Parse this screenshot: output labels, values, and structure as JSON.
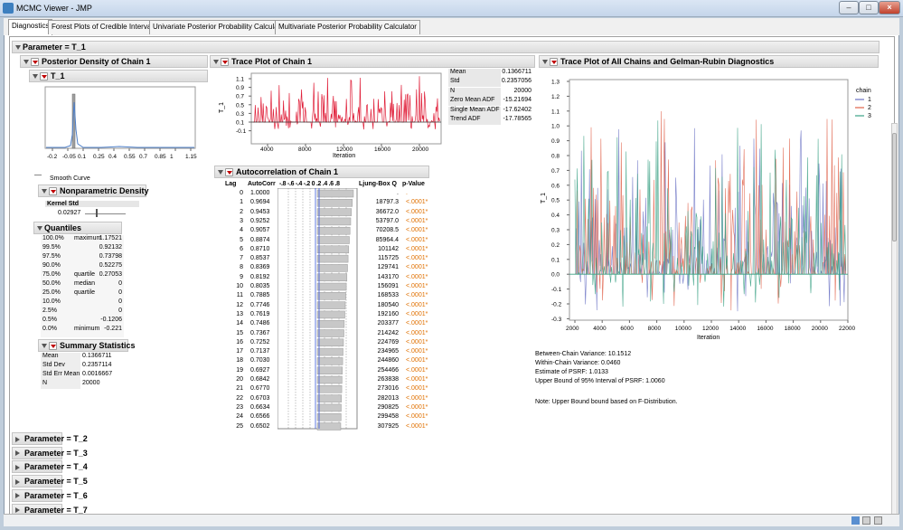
{
  "window": {
    "title": "MCMC Viewer - JMP"
  },
  "tabs": [
    {
      "label": "Diagnostics",
      "active": true
    },
    {
      "label": "Forest Plots of Credible Intervals",
      "active": false
    },
    {
      "label": "Univariate Posterior Probability Calculator",
      "active": false
    },
    {
      "label": "Multivariate Posterior Probability Calculator",
      "active": false
    }
  ],
  "parameter_header": "Parameter = T_1",
  "density": {
    "title": "Posterior Density of Chain 1",
    "subtitle": "T_1",
    "x_ticks": [
      "-0.2",
      "-0.05",
      "0.1",
      "0.25",
      "0.4",
      "0.55",
      "0.7",
      "0.85",
      "1",
      "1.15"
    ],
    "smooth_curve_label": "Smooth Curve",
    "nonparametric": {
      "title": "Nonparametric Density",
      "col": "Kernel Std",
      "value": "0.02927"
    }
  },
  "quantiles": {
    "title": "Quantiles",
    "rows": [
      {
        "pct": "100.0%",
        "label": "maximum",
        "value": "1.17521"
      },
      {
        "pct": "99.5%",
        "label": "",
        "value": "0.92132"
      },
      {
        "pct": "97.5%",
        "label": "",
        "value": "0.73798"
      },
      {
        "pct": "90.0%",
        "label": "",
        "value": "0.52275"
      },
      {
        "pct": "75.0%",
        "label": "quartile",
        "value": "0.27053"
      },
      {
        "pct": "50.0%",
        "label": "median",
        "value": "0"
      },
      {
        "pct": "25.0%",
        "label": "quartile",
        "value": "0"
      },
      {
        "pct": "10.0%",
        "label": "",
        "value": "0"
      },
      {
        "pct": "2.5%",
        "label": "",
        "value": "0"
      },
      {
        "pct": "0.5%",
        "label": "",
        "value": "-0.1206"
      },
      {
        "pct": "0.0%",
        "label": "minimum",
        "value": "-0.221"
      }
    ]
  },
  "summary": {
    "title": "Summary Statistics",
    "rows": [
      {
        "label": "Mean",
        "value": "0.1366711"
      },
      {
        "label": "Std Dev",
        "value": "0.2357114"
      },
      {
        "label": "Std Err Mean",
        "value": "0.0016667"
      },
      {
        "label": "N",
        "value": "20000"
      }
    ]
  },
  "trace1": {
    "title": "Trace Plot of Chain 1",
    "ylabel": "T_1",
    "xlabel": "Iteration",
    "y_ticks": [
      "1.1",
      "0.9",
      "0.7",
      "0.5",
      "0.3",
      "0.1",
      "-0.1"
    ],
    "x_ticks": [
      "4000",
      "8000",
      "12000",
      "16000",
      "20000"
    ],
    "stats": [
      {
        "label": "Mean",
        "value": "0.1366711"
      },
      {
        "label": "Std",
        "value": "0.2357056"
      },
      {
        "label": "N",
        "value": "20000"
      },
      {
        "label": "Zero Mean ADF",
        "value": "-15.21694"
      },
      {
        "label": "Single Mean ADF",
        "value": "-17.62402"
      },
      {
        "label": "Trend ADF",
        "value": "-17.78565"
      }
    ]
  },
  "autocorr": {
    "title": "Autocorrelation of Chain 1",
    "headers": {
      "lag": "Lag",
      "ac": "AutoCorr",
      "scale": "-.8 -.6 -.4 -.2  0  .2  .4  .6  .8",
      "lb": "Ljung-Box Q",
      "p": "p-Value"
    },
    "rows": [
      {
        "lag": "0",
        "ac": "1.0000",
        "lb": ".",
        "p": "."
      },
      {
        "lag": "1",
        "ac": "0.9694",
        "lb": "18797.3",
        "p": "<.0001*"
      },
      {
        "lag": "2",
        "ac": "0.9453",
        "lb": "36672.0",
        "p": "<.0001*"
      },
      {
        "lag": "3",
        "ac": "0.9252",
        "lb": "53797.0",
        "p": "<.0001*"
      },
      {
        "lag": "4",
        "ac": "0.9057",
        "lb": "70208.5",
        "p": "<.0001*"
      },
      {
        "lag": "5",
        "ac": "0.8874",
        "lb": "85964.4",
        "p": "<.0001*"
      },
      {
        "lag": "6",
        "ac": "0.8710",
        "lb": "101142",
        "p": "<.0001*"
      },
      {
        "lag": "7",
        "ac": "0.8537",
        "lb": "115725",
        "p": "<.0001*"
      },
      {
        "lag": "8",
        "ac": "0.8369",
        "lb": "129741",
        "p": "<.0001*"
      },
      {
        "lag": "9",
        "ac": "0.8192",
        "lb": "143170",
        "p": "<.0001*"
      },
      {
        "lag": "10",
        "ac": "0.8035",
        "lb": "156091",
        "p": "<.0001*"
      },
      {
        "lag": "11",
        "ac": "0.7885",
        "lb": "168533",
        "p": "<.0001*"
      },
      {
        "lag": "12",
        "ac": "0.7746",
        "lb": "180540",
        "p": "<.0001*"
      },
      {
        "lag": "13",
        "ac": "0.7619",
        "lb": "192160",
        "p": "<.0001*"
      },
      {
        "lag": "14",
        "ac": "0.7486",
        "lb": "203377",
        "p": "<.0001*"
      },
      {
        "lag": "15",
        "ac": "0.7367",
        "lb": "214242",
        "p": "<.0001*"
      },
      {
        "lag": "16",
        "ac": "0.7252",
        "lb": "224769",
        "p": "<.0001*"
      },
      {
        "lag": "17",
        "ac": "0.7137",
        "lb": "234965",
        "p": "<.0001*"
      },
      {
        "lag": "18",
        "ac": "0.7030",
        "lb": "244860",
        "p": "<.0001*"
      },
      {
        "lag": "19",
        "ac": "0.6927",
        "lb": "254466",
        "p": "<.0001*"
      },
      {
        "lag": "20",
        "ac": "0.6842",
        "lb": "263838",
        "p": "<.0001*"
      },
      {
        "lag": "21",
        "ac": "0.6770",
        "lb": "273016",
        "p": "<.0001*"
      },
      {
        "lag": "22",
        "ac": "0.6703",
        "lb": "282013",
        "p": "<.0001*"
      },
      {
        "lag": "23",
        "ac": "0.6634",
        "lb": "290825",
        "p": "<.0001*"
      },
      {
        "lag": "24",
        "ac": "0.6566",
        "lb": "299458",
        "p": "<.0001*"
      },
      {
        "lag": "25",
        "ac": "0.6502",
        "lb": "307925",
        "p": "<.0001*"
      }
    ]
  },
  "trace_all": {
    "title": "Trace Plot of All Chains and Gelman-Rubin Diagnostics",
    "ylabel": "T_1",
    "xlabel": "Iteration",
    "y_ticks": [
      "1.3",
      "1.2",
      "1.1",
      "1.0",
      "0.9",
      "0.8",
      "0.7",
      "0.6",
      "0.5",
      "0.4",
      "0.3",
      "0.2",
      "0.1",
      "0.0",
      "-0.1",
      "-0.2",
      "-0.3"
    ],
    "x_ticks": [
      "2000",
      "4000",
      "6000",
      "8000",
      "10000",
      "12000",
      "14000",
      "16000",
      "18000",
      "20000",
      "22000"
    ],
    "legend_title": "chain",
    "legend": [
      {
        "label": "1",
        "color": "#6a72c4"
      },
      {
        "label": "2",
        "color": "#e0624a"
      },
      {
        "label": "3",
        "color": "#3aa184"
      }
    ],
    "diagnostics": [
      "Between-Chain Variance: 10.1512",
      "Within-Chain Variance: 0.0460",
      "Estimate of PSRF: 1.0133",
      "Upper Bound of 95% Interval of PSRF: 1.0060"
    ],
    "note": "Note: Upper Bound bound based on F-Distribution."
  },
  "collapsed_params": [
    "Parameter = T_2",
    "Parameter = T_3",
    "Parameter = T_4",
    "Parameter = T_5",
    "Parameter = T_6",
    "Parameter = T_7"
  ],
  "colors": {
    "trace_red": "#e0203a",
    "acf_blue": "#3b5bdb",
    "p_orange": "#e07000"
  }
}
